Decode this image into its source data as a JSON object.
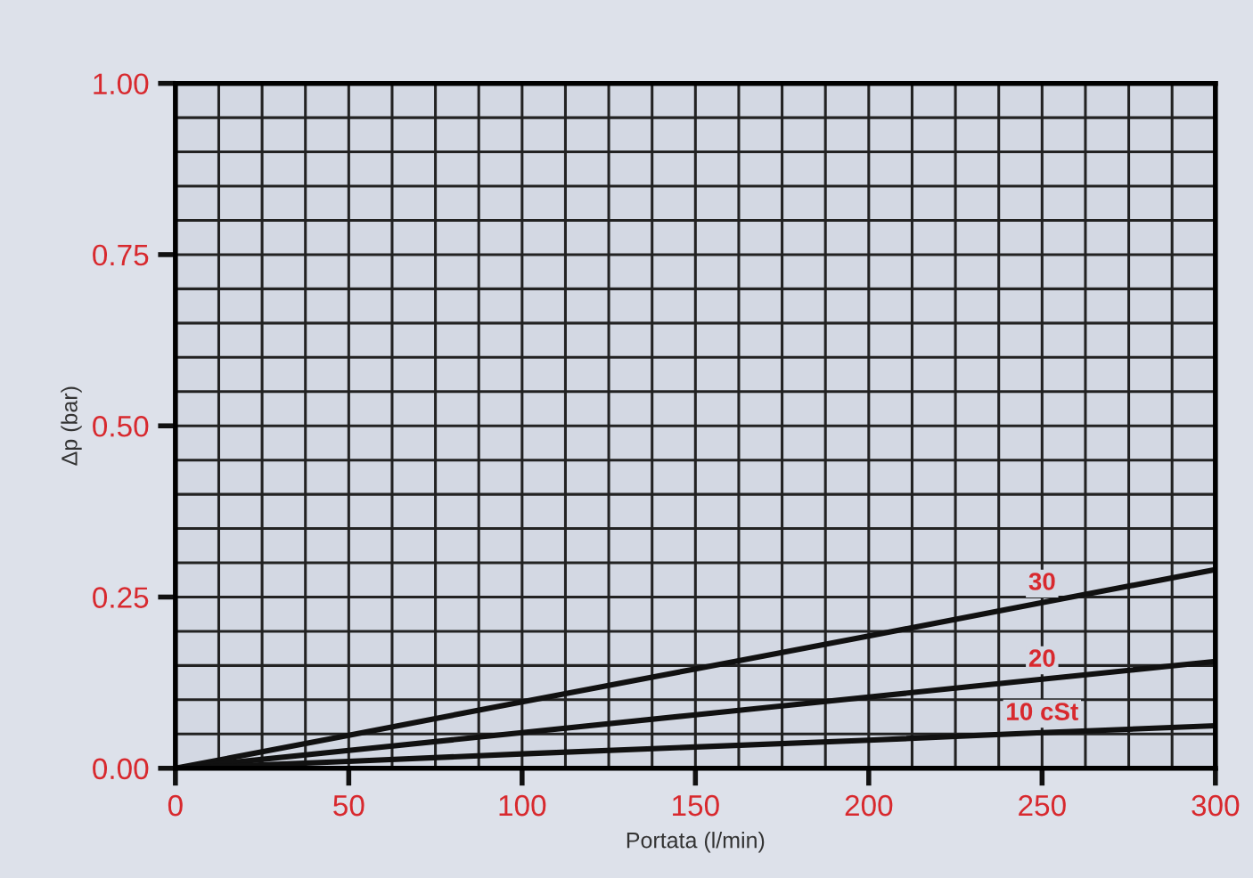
{
  "chart_data": {
    "type": "line",
    "xlabel": "Portata (l/min)",
    "ylabel": "Δp (bar)",
    "x": [
      0,
      50,
      100,
      150,
      200,
      250,
      300
    ],
    "series": [
      {
        "name": "30",
        "color": "#111111",
        "values": [
          0,
          0.048,
          0.097,
          0.145,
          0.193,
          0.242,
          0.29
        ]
      },
      {
        "name": "20",
        "color": "#111111",
        "values": [
          0,
          0.026,
          0.052,
          0.078,
          0.104,
          0.13,
          0.156
        ]
      },
      {
        "name": "10 cSt",
        "color": "#111111",
        "values": [
          0,
          0.01,
          0.021,
          0.031,
          0.041,
          0.052,
          0.062
        ]
      }
    ],
    "xlim": [
      0,
      300
    ],
    "ylim": [
      0,
      1
    ],
    "xticks": [
      0,
      50,
      100,
      150,
      200,
      250,
      300
    ],
    "yticks": [
      {
        "value": 0,
        "label": "0.00"
      },
      {
        "value": 0.25,
        "label": "0.25"
      },
      {
        "value": 0.5,
        "label": "0.50"
      },
      {
        "value": 0.75,
        "label": "0.75"
      },
      {
        "value": 1,
        "label": "1.00"
      }
    ],
    "grid": true,
    "legend": false,
    "marker": "none",
    "line_style": "solid"
  }
}
